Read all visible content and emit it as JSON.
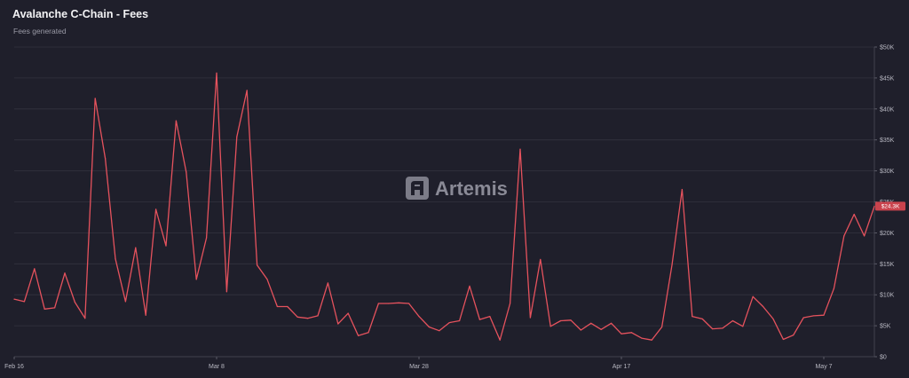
{
  "header": {
    "title": "Avalanche C-Chain - Fees",
    "subtitle": "Fees generated"
  },
  "watermark": {
    "text": "Artemis"
  },
  "colors": {
    "background": "#1f1f2b",
    "line": "#e5525d",
    "grid": "#33333f",
    "badge": "#c9434d"
  },
  "chart_data": {
    "type": "line",
    "title": "Avalanche C-Chain - Fees",
    "subtitle": "Fees generated",
    "grid": true,
    "y_axis_position": "right",
    "ylim": [
      0,
      50000
    ],
    "y_ticks": [
      {
        "value": 0,
        "label": "$0"
      },
      {
        "value": 5000,
        "label": "$5K"
      },
      {
        "value": 10000,
        "label": "$10K"
      },
      {
        "value": 15000,
        "label": "$15K"
      },
      {
        "value": 20000,
        "label": "$20K"
      },
      {
        "value": 25000,
        "label": "$25K"
      },
      {
        "value": 30000,
        "label": "$30K"
      },
      {
        "value": 35000,
        "label": "$35K"
      },
      {
        "value": 40000,
        "label": "$40K"
      },
      {
        "value": 45000,
        "label": "$45K"
      },
      {
        "value": 50000,
        "label": "$50K"
      }
    ],
    "x_ticks": [
      {
        "index": 0,
        "label": "Feb 16"
      },
      {
        "index": 20,
        "label": "Mar 8"
      },
      {
        "index": 40,
        "label": "Mar 28"
      },
      {
        "index": 60,
        "label": "Apr 17"
      },
      {
        "index": 80,
        "label": "May 7"
      }
    ],
    "last_value_label": "$24.3K",
    "series": [
      {
        "values": [
          9300,
          8900,
          14200,
          7700,
          7900,
          13500,
          8800,
          6200,
          41700,
          32000,
          15800,
          8900,
          17600,
          6700,
          23800,
          17900,
          38100,
          29800,
          12500,
          19200,
          45800,
          10500,
          35500,
          43000,
          14800,
          12500,
          8100,
          8100,
          6400,
          6200,
          6600,
          11900,
          5300,
          7000,
          3400,
          3900,
          8600,
          8600,
          8700,
          8600,
          6500,
          4800,
          4200,
          5500,
          5800,
          11400,
          6000,
          6500,
          2700,
          8600,
          33500,
          6300,
          15700,
          4900,
          5800,
          5900,
          4300,
          5400,
          4400,
          5400,
          3700,
          3900,
          3000,
          2700,
          4800,
          14800,
          27000,
          6500,
          6100,
          4500,
          4600,
          5800,
          4900,
          9700,
          8100,
          6100,
          2800,
          3500,
          6300,
          6600,
          6700,
          11000,
          19500,
          23000,
          19500,
          24300
        ]
      }
    ]
  }
}
